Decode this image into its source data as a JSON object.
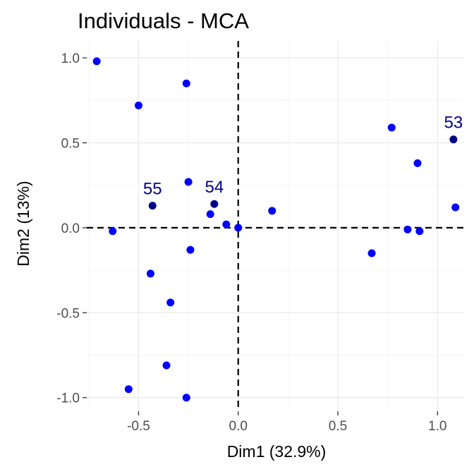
{
  "chart_data": {
    "type": "scatter",
    "title": "Individuals - MCA",
    "xlabel": "Dim1 (32.9%)",
    "ylabel": "Dim2 (13%)",
    "xlim": [
      -0.76,
      1.13
    ],
    "ylim": [
      -1.08,
      1.1
    ],
    "x_ticks": [
      -0.5,
      0.0,
      0.5,
      1.0
    ],
    "x_tick_labels": [
      "-0.5",
      "0.0",
      "0.5",
      "1.0"
    ],
    "y_ticks": [
      -1.0,
      -0.5,
      0.0,
      0.5,
      1.0
    ],
    "y_tick_labels": [
      "-1.0",
      "-0.5",
      "0.0",
      "0.5",
      "1.0"
    ],
    "grid": true,
    "reference_lines": {
      "x": 0,
      "y": 0,
      "style": "dashed"
    },
    "colors": {
      "points": "#0000ff",
      "supplementary": "#00008b",
      "grid": "#ebebeb"
    },
    "points": [
      {
        "x": -0.71,
        "y": 0.98
      },
      {
        "x": -0.5,
        "y": 0.72
      },
      {
        "x": -0.26,
        "y": 0.85
      },
      {
        "x": -0.25,
        "y": 0.27
      },
      {
        "x": -0.14,
        "y": 0.08
      },
      {
        "x": -0.06,
        "y": 0.02
      },
      {
        "x": 0.0,
        "y": 0.0
      },
      {
        "x": 0.17,
        "y": 0.1
      },
      {
        "x": -0.63,
        "y": -0.02
      },
      {
        "x": -0.24,
        "y": -0.13
      },
      {
        "x": -0.44,
        "y": -0.27
      },
      {
        "x": -0.34,
        "y": -0.44
      },
      {
        "x": -0.36,
        "y": -0.81
      },
      {
        "x": -0.55,
        "y": -0.95
      },
      {
        "x": -0.26,
        "y": -1.0
      },
      {
        "x": 0.77,
        "y": 0.59
      },
      {
        "x": 0.9,
        "y": 0.38
      },
      {
        "x": 1.09,
        "y": 0.12
      },
      {
        "x": 0.85,
        "y": -0.01
      },
      {
        "x": 0.91,
        "y": -0.02
      },
      {
        "x": 0.67,
        "y": -0.15
      }
    ],
    "labeled_points": [
      {
        "label": "53",
        "x": 1.08,
        "y": 0.52
      },
      {
        "label": "54",
        "x": -0.12,
        "y": 0.14
      },
      {
        "label": "55",
        "x": -0.43,
        "y": 0.13
      }
    ]
  }
}
